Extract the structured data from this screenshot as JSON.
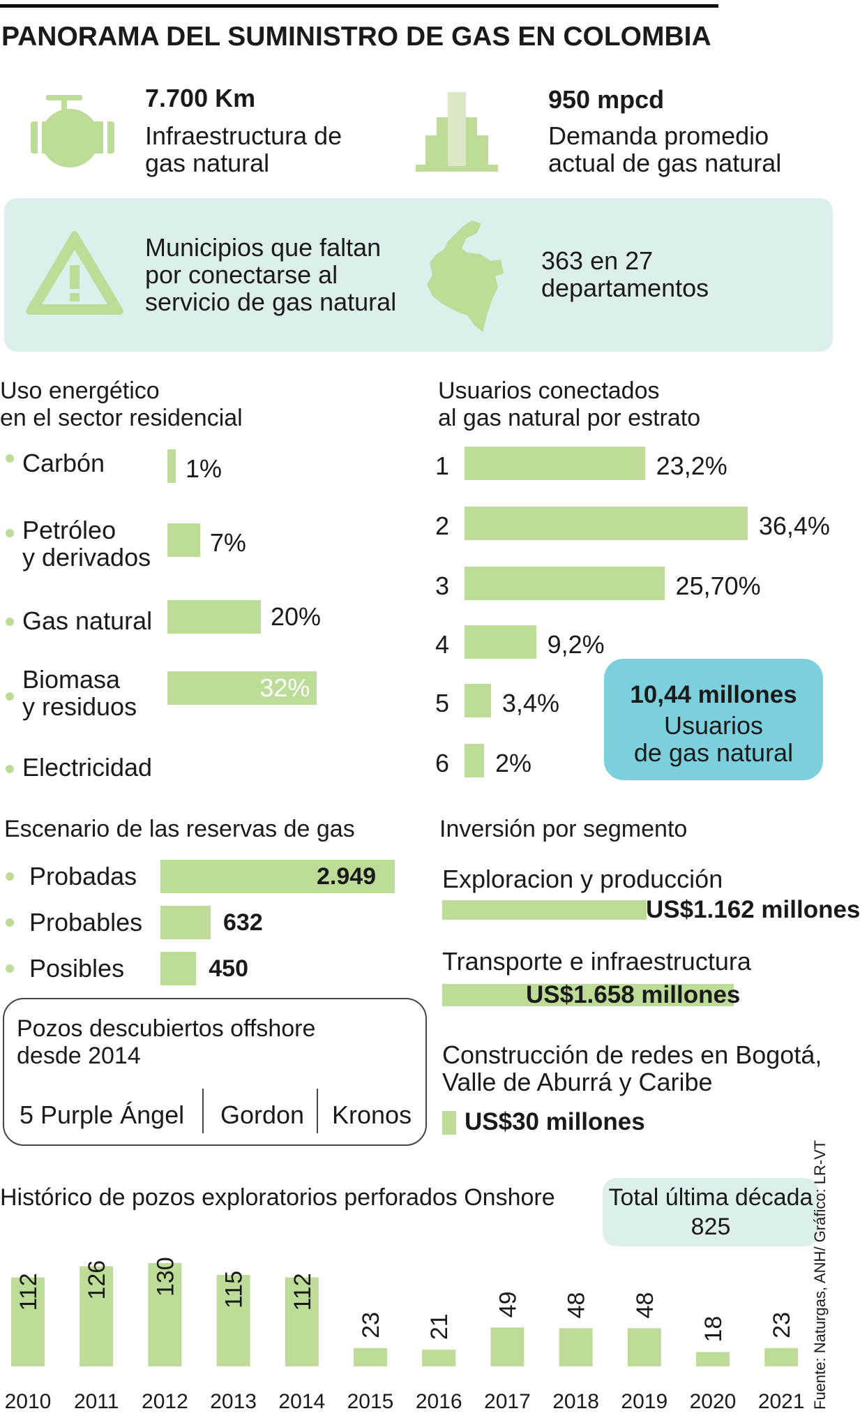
{
  "title": "PANORAMA DEL SUMINISTRO DE GAS EN COLOMBIA",
  "colors": {
    "green": "#bddc98",
    "light_green": "#dde9c6",
    "panel": "#dcefed",
    "blue_callout": "#7ccfdc",
    "text": "#1a1a1a"
  },
  "stats": {
    "infra": {
      "icon": "valve-icon",
      "value": "7.700 Km",
      "line1": "Infraestructura de",
      "line2": "gas natural"
    },
    "demand": {
      "icon": "bar-chart-icon",
      "value": "950 mpcd",
      "line1": "Demanda promedio",
      "line2": "actual de gas natural"
    }
  },
  "panel": {
    "icon": "warning-icon",
    "map_icon": "colombia-map-icon",
    "text_lines": [
      "Municipios que faltan",
      "por conectarse al",
      "servicio de gas natural"
    ],
    "value_lines": [
      "363 en 27",
      "departamentos"
    ]
  },
  "chart_data": [
    {
      "type": "bar",
      "orientation": "horizontal",
      "title": "Uso energético en el sector residencial",
      "title_lines": [
        "Uso energético",
        "en el sector residencial"
      ],
      "categories": [
        "Carbón",
        "Petróleo y derivados",
        "Gas natural",
        "Biomasa y residuos",
        "Electricidad"
      ],
      "category_lines": [
        [
          "Carbón"
        ],
        [
          "Petróleo",
          "y derivados"
        ],
        [
          "Gas natural"
        ],
        [
          "Biomasa",
          "y residuos"
        ],
        [
          "Electricidad"
        ]
      ],
      "values": [
        1,
        7,
        20,
        32,
        null
      ],
      "value_labels": [
        "1%",
        "7%",
        "20%",
        "32%",
        ""
      ]
    },
    {
      "type": "bar",
      "orientation": "horizontal",
      "title": "Usuarios conectados al gas natural por estrato",
      "title_lines": [
        "Usuarios conectados",
        "al gas natural por estrato"
      ],
      "categories": [
        "1",
        "2",
        "3",
        "4",
        "5",
        "6"
      ],
      "values": [
        23.2,
        36.4,
        25.7,
        9.2,
        3.4,
        2
      ],
      "value_labels": [
        "23,2%",
        "36,4%",
        "25,70%",
        "9,2%",
        "3,4%",
        "2%"
      ],
      "callout": {
        "value": "10,44 millones",
        "line1": "Usuarios",
        "line2": "de gas natural"
      }
    },
    {
      "type": "bar",
      "orientation": "horizontal",
      "title": "Escenario de las reservas de gas",
      "categories": [
        "Probadas",
        "Probables",
        "Posibles"
      ],
      "values": [
        2949,
        632,
        450
      ],
      "value_labels": [
        "2.949",
        "632",
        "450"
      ]
    },
    {
      "type": "bar",
      "orientation": "horizontal",
      "title": "Inversión por segmento",
      "categories": [
        "Exploracion y producción",
        "Transporte e infraestructura",
        "Construcción de redes en Bogotá, Valle de Aburrá y Caribe"
      ],
      "category_lines": [
        [
          "Exploracion y producción"
        ],
        [
          "Transporte e infraestructura"
        ],
        [
          "Construcción de redes en Bogotá,",
          "Valle de Aburrá y Caribe"
        ]
      ],
      "values": [
        1162,
        1658,
        30
      ],
      "value_labels": [
        "US$1.162 millones",
        "US$1.658 millones",
        "US$30 millones"
      ]
    },
    {
      "type": "bar",
      "title": "Histórico de pozos exploratorios perforados Onshore",
      "categories": [
        "2010",
        "2011",
        "2012",
        "2013",
        "2014",
        "2015",
        "2016",
        "2017",
        "2018",
        "2019",
        "2020",
        "2021"
      ],
      "values": [
        112,
        126,
        130,
        115,
        112,
        23,
        21,
        49,
        48,
        48,
        18,
        23
      ],
      "ylim": [
        0,
        130
      ],
      "total": {
        "label": "Total última década",
        "value": "825"
      }
    }
  ],
  "offshore": {
    "title_lines": [
      "Pozos descubiertos offshore",
      "desde 2014"
    ],
    "items": [
      "5  Purple Ángel",
      "Gordon",
      "Kronos"
    ]
  },
  "source": "Fuente: Naturgas, ANH/ Gráfico: LR-VT"
}
